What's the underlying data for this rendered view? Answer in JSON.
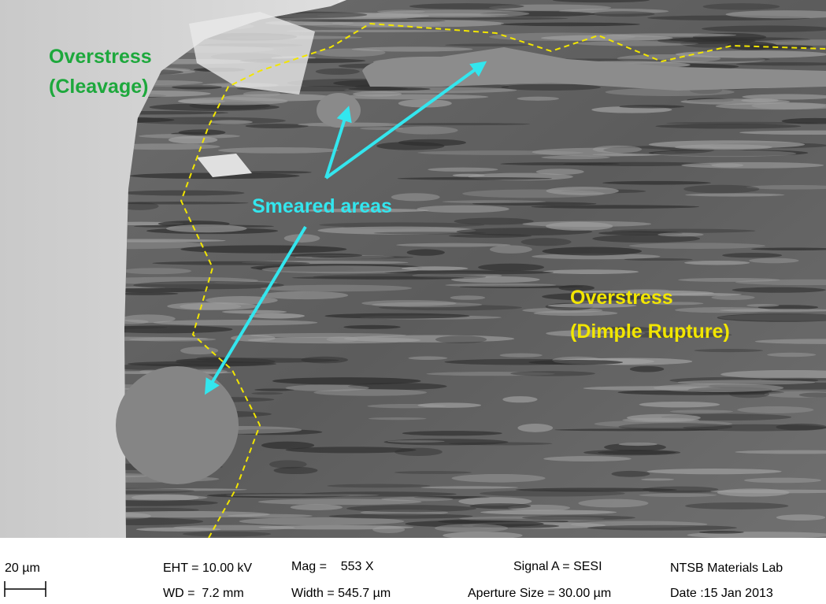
{
  "annotations": {
    "cleavage": {
      "line1": "Overstress",
      "line2": "(Cleavage)"
    },
    "smeared": "Smeared areas",
    "dimple": {
      "line1": "Overstress",
      "line2": "(Dimple Rupture)"
    }
  },
  "info_bar": {
    "scale": "20 µm",
    "eht": "EHT = 10.00 kV",
    "wd": "WD =  7.2 mm",
    "mag": "Mag =    553 X",
    "width": "Width = 545.7 µm",
    "signal": "Signal A = SESI",
    "aperture": "Aperture Size = 30.00 µm",
    "lab": "NTSB Materials Lab",
    "date": "Date :15 Jan 2013"
  }
}
